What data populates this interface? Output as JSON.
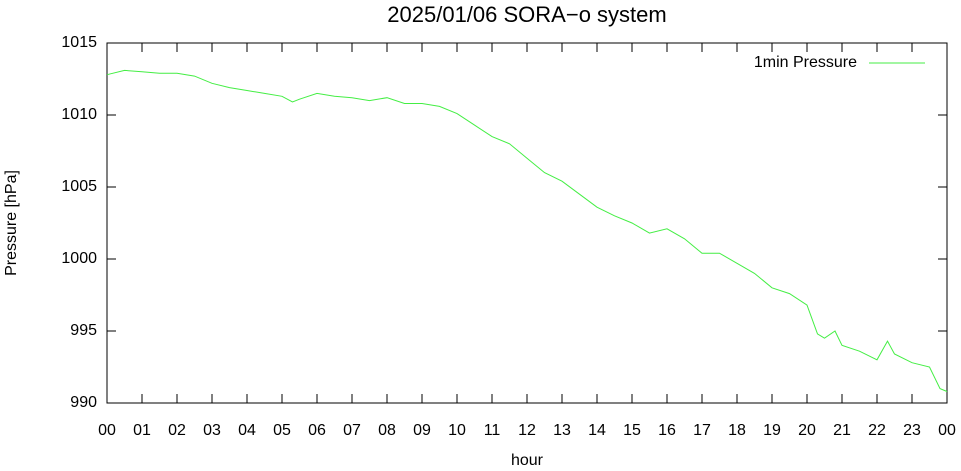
{
  "chart_data": {
    "type": "line",
    "title": "2025/01/06 SORA−o system",
    "x_label": "hour",
    "y_label": "Pressure [hPa]",
    "legend": "top-right",
    "x": [
      0,
      0.5,
      1,
      1.5,
      2,
      2.5,
      3,
      3.5,
      4,
      4.5,
      5,
      5.3,
      5.5,
      6,
      6.5,
      7,
      7.5,
      8,
      8.5,
      9,
      9.5,
      10,
      10.5,
      11,
      11.5,
      12,
      12.5,
      13,
      13.5,
      14,
      14.5,
      15,
      15.5,
      16,
      16.5,
      17,
      17.5,
      18,
      18.5,
      19,
      19.5,
      20,
      20.3,
      20.5,
      20.8,
      21,
      21.5,
      22,
      22.3,
      22.5,
      23,
      23.5,
      23.8,
      24
    ],
    "series": [
      {
        "name": "1min Pressure",
        "color": "#44ee44",
        "values": [
          1012.8,
          1013.1,
          1013.0,
          1012.9,
          1012.9,
          1012.7,
          1012.2,
          1011.9,
          1011.7,
          1011.5,
          1011.3,
          1010.9,
          1011.1,
          1011.5,
          1011.3,
          1011.2,
          1011.0,
          1011.2,
          1010.8,
          1010.8,
          1010.6,
          1010.1,
          1009.3,
          1008.5,
          1008.0,
          1007.0,
          1006.0,
          1005.4,
          1004.5,
          1003.6,
          1003.0,
          1002.5,
          1001.8,
          1002.1,
          1001.4,
          1000.4,
          1000.4,
          999.7,
          999.0,
          998.0,
          997.6,
          996.8,
          994.8,
          994.5,
          995.0,
          994.0,
          993.6,
          993.0,
          994.3,
          993.4,
          992.8,
          992.5,
          991.0,
          990.8
        ]
      }
    ],
    "xlim": [
      0,
      24
    ],
    "xticks": [
      {
        "value": 0,
        "label": "00"
      },
      {
        "value": 1,
        "label": "01"
      },
      {
        "value": 2,
        "label": "02"
      },
      {
        "value": 3,
        "label": "03"
      },
      {
        "value": 4,
        "label": "04"
      },
      {
        "value": 5,
        "label": "05"
      },
      {
        "value": 6,
        "label": "06"
      },
      {
        "value": 7,
        "label": "07"
      },
      {
        "value": 8,
        "label": "08"
      },
      {
        "value": 9,
        "label": "09"
      },
      {
        "value": 10,
        "label": "10"
      },
      {
        "value": 11,
        "label": "11"
      },
      {
        "value": 12,
        "label": "12"
      },
      {
        "value": 13,
        "label": "13"
      },
      {
        "value": 14,
        "label": "14"
      },
      {
        "value": 15,
        "label": "15"
      },
      {
        "value": 16,
        "label": "16"
      },
      {
        "value": 17,
        "label": "17"
      },
      {
        "value": 18,
        "label": "18"
      },
      {
        "value": 19,
        "label": "19"
      },
      {
        "value": 20,
        "label": "20"
      },
      {
        "value": 21,
        "label": "21"
      },
      {
        "value": 22,
        "label": "22"
      },
      {
        "value": 23,
        "label": "23"
      },
      {
        "value": 24,
        "label": "00"
      }
    ],
    "ylim": [
      990,
      1015
    ],
    "yticks": [
      990,
      995,
      1000,
      1005,
      1010,
      1015
    ],
    "grid": false
  }
}
